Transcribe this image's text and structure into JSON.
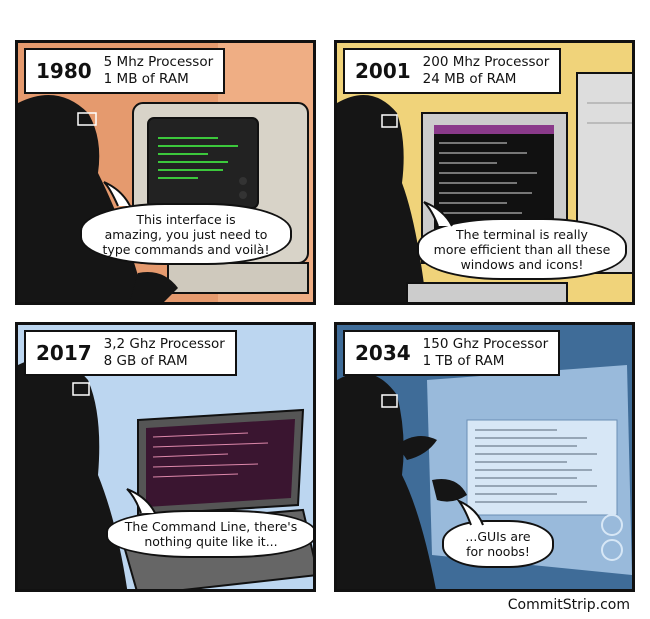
{
  "panels": [
    {
      "year": "1980",
      "spec1": "5 Mhz Processor",
      "spec2": "1 MB of RAM",
      "bubble": [
        "This interface is",
        "amazing, you just need to",
        "type commands and voilà!"
      ]
    },
    {
      "year": "2001",
      "spec1": "200 Mhz Processor",
      "spec2": "24 MB of RAM",
      "bubble": [
        "The terminal is really",
        "more efficient than all these",
        "windows and icons!"
      ]
    },
    {
      "year": "2017",
      "spec1": "3,2 Ghz Processor",
      "spec2": "8 GB of RAM",
      "bubble": [
        "The Command Line, there's",
        "nothing quite like it..."
      ]
    },
    {
      "year": "2034",
      "spec1": "150 Ghz Processor",
      "spec2": "1 TB of RAM",
      "bubble": [
        "...GUIs are",
        "for noobs!"
      ]
    }
  ],
  "footer": "CommitStrip.com",
  "colors": {
    "panel1_bg": "#e59a6e",
    "panel2_bg": "#f0d37a",
    "panel3_bg": "#bcd6f0",
    "panel4_bg": "#3f6c98",
    "silhouette": "#151515"
  }
}
